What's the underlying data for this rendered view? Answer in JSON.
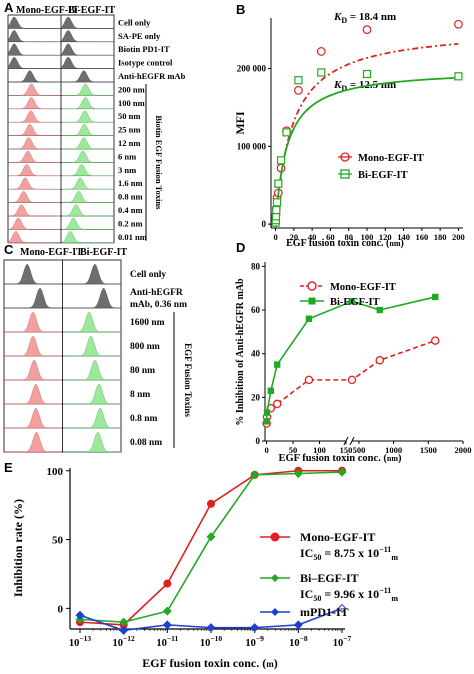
{
  "colors": {
    "red": "#e02020",
    "green": "#22a822",
    "blue": "#1f3fd0",
    "gray": "#6e6e6e",
    "red_fill": "#f2a0a0",
    "green_fill": "#9ee89e"
  },
  "chart_data": [
    {
      "panel": "A",
      "type": "histogram-overlay",
      "columns": [
        "Mono-EGF-IT",
        "Bi-EGF-IT"
      ],
      "rows": [
        "Cell only",
        "SA-PE only",
        "Biotin PD1-IT",
        "Isotype control",
        "Anti-hEGFR mAb",
        "200 nM",
        "100 nM",
        "50 nM",
        "25 nM",
        "12 nM",
        "6 nM",
        "3 nM",
        "1.6 nM",
        "0.8 nM",
        "0.4 nM",
        "0.2 nM",
        "0.01 nM"
      ],
      "row_labels": [
        "Cell only",
        "SA-PE only",
        "Biotin PD1-IT",
        "Isotype control",
        "Anti-hEGFR mAb",
        "200 nm",
        "100 nm",
        "50 nm",
        "25 nm",
        "12 nm",
        "6 nm",
        "3 nm",
        "1.6 nm",
        "0.8 nm",
        "0.4 nm",
        "0.2 nm",
        "0.01 nm"
      ],
      "bracket_label": "Biotin EGF Fusion Toxins",
      "peak_mono": [
        0.12,
        0.12,
        0.12,
        0.12,
        0.42,
        0.45,
        0.45,
        0.44,
        0.42,
        0.4,
        0.38,
        0.36,
        0.33,
        0.3,
        0.26,
        0.2,
        0.15
      ],
      "peak_bi": [
        0.12,
        0.12,
        0.12,
        0.12,
        0.42,
        0.45,
        0.45,
        0.44,
        0.43,
        0.42,
        0.4,
        0.38,
        0.35,
        0.32,
        0.27,
        0.22,
        0.16
      ]
    },
    {
      "panel": "B",
      "type": "scatter",
      "xlabel": "EGF fusion toxin conc. (nM)",
      "xlabel_parts": [
        "EGF fusion toxin conc. (",
        "nm",
        ")"
      ],
      "ylabel": "MFI",
      "xlim": [
        -5,
        205
      ],
      "ylim": [
        -5000,
        265000
      ],
      "xticks": [
        0,
        20,
        40,
        60,
        80,
        100,
        120,
        140,
        160,
        180,
        200
      ],
      "yticks": [
        0,
        100000,
        200000
      ],
      "ytick_labels": [
        "0",
        "100 000",
        "200 000"
      ],
      "annotations": [
        {
          "main": "K",
          "sub": "D",
          "rest": " = 18.4 nm",
          "series": "Mono-EGF-IT"
        },
        {
          "main": "K",
          "sub": "D",
          "rest": " = 12.5 nm",
          "series": "Bi-EGF-IT"
        }
      ],
      "series": [
        {
          "name": "Mono-EGF-IT",
          "marker": "open-circle",
          "fit": "dash-dot",
          "bmax": 253000,
          "kd": 18.4,
          "x": [
            0.01,
            0.2,
            0.4,
            0.8,
            1.6,
            3,
            6,
            12,
            25,
            50,
            100,
            200
          ],
          "y": [
            2000,
            6000,
            11000,
            20000,
            34000,
            40000,
            72000,
            120000,
            172000,
            222000,
            250000,
            257000
          ]
        },
        {
          "name": "Bi-EGF-IT",
          "marker": "open-square",
          "fit": "solid",
          "bmax": 200000,
          "kd": 12.5,
          "x": [
            0.01,
            0.2,
            0.4,
            0.8,
            1.6,
            3,
            6,
            12,
            25,
            50,
            100,
            200
          ],
          "y": [
            2000,
            5000,
            10000,
            18000,
            28000,
            52000,
            82000,
            118000,
            185000,
            195000,
            193000,
            190000
          ]
        }
      ]
    },
    {
      "panel": "C",
      "type": "histogram-overlay",
      "columns": [
        "Mono-EGF-IT",
        "Bi-EGF-IT"
      ],
      "rows": [
        "Cell only",
        "Anti-hEGFR mAb, 0.36 nM",
        "1600 nM",
        "800 nM",
        "80 nM",
        "8 nM",
        "0.8 nM",
        "0.08 nM"
      ],
      "row_labels": [
        "Cell only",
        "Anti-hEGFR",
        "mAb, 0.36 nm",
        "1600 nm",
        "800 nm",
        "80 nm",
        "8 nm",
        "0.8 nm",
        "0.08 nm"
      ],
      "bracket_label": "EGF Fusion Toxins",
      "peak_mono": [
        0.4,
        0.62,
        0.5,
        0.5,
        0.52,
        0.55,
        0.55,
        0.56
      ],
      "peak_bi": [
        0.55,
        0.7,
        0.45,
        0.48,
        0.55,
        0.62,
        0.64,
        0.6
      ]
    },
    {
      "panel": "D",
      "type": "line",
      "xlabel": "EGF fusion toxin conc. (nM)",
      "xlabel_parts": [
        "EGF fusion toxin conc. (",
        "nm",
        ")"
      ],
      "ylabel": "% Inhibition of Anti-hEGFR mAb",
      "ylim": [
        0,
        82
      ],
      "yticks": [
        0,
        20,
        40,
        60,
        80
      ],
      "xticks": [
        0,
        50,
        100,
        150,
        500,
        1000,
        1500,
        2000
      ],
      "x_axis_break": [
        150,
        400
      ],
      "series": [
        {
          "name": "Mono-EGF-IT",
          "marker": "open-circle",
          "dash": true,
          "x": [
            0.08,
            0.8,
            8,
            20,
            80,
            400,
            800,
            1600
          ],
          "y": [
            8,
            11,
            15,
            17,
            28,
            28,
            37,
            46
          ]
        },
        {
          "name": "Bi-EGF-IT",
          "marker": "filled-square",
          "dash": false,
          "x": [
            0.08,
            0.8,
            8,
            20,
            80,
            400,
            800,
            1600
          ],
          "y": [
            9,
            13,
            23,
            35,
            56,
            64,
            60,
            66
          ]
        }
      ]
    },
    {
      "panel": "E",
      "type": "line",
      "xlabel": "EGF fusion toxin conc. (M)",
      "xlabel_parts": [
        "EGF fusion toxin conc. (",
        "m",
        ")"
      ],
      "ylabel": "Inhibition rate (%)",
      "x_scale": "log",
      "xlim": [
        1e-13,
        1e-07
      ],
      "ylim": [
        -15,
        102
      ],
      "yticks": [
        0,
        50,
        100
      ],
      "xtick_exponents": [
        -13,
        -12,
        -11,
        -10,
        -9,
        -8,
        -7
      ],
      "series": [
        {
          "name": "Mono-EGF-IT",
          "ic50": "IC 50 = 8.75 x 10-11 M",
          "marker": "filled-circle",
          "x": [
            1e-13,
            1e-12,
            1e-11,
            1e-10,
            1e-09,
            1e-08,
            1e-07
          ],
          "y": [
            -10,
            -12,
            18,
            76,
            97,
            100,
            100
          ]
        },
        {
          "name": "Bi-EGF-IT",
          "ic50": "IC 50 = 9.96 x 10-11 M",
          "marker": "filled-diamond",
          "x": [
            1e-13,
            1e-12,
            1e-11,
            1e-10,
            1e-09,
            1e-08,
            1e-07
          ],
          "y": [
            -8,
            -10,
            -2,
            52,
            97,
            98,
            99
          ]
        },
        {
          "name": "mPD1-IT",
          "marker": "filled-diamond",
          "x": [
            1e-13,
            1e-12,
            1e-11,
            1e-10,
            1e-09,
            1e-08,
            1e-07
          ],
          "y": [
            -5,
            -16,
            -12,
            -14,
            -14,
            -12,
            0
          ]
        }
      ],
      "legend": [
        {
          "name": "Mono-EGF-IT",
          "ic_prefix": "IC",
          "ic_sub": "50",
          "ic_mid": " = 8.75 x 10",
          "ic_sup": "−11",
          "ic_unit": "m"
        },
        {
          "name": "Bi–EGF-IT",
          "ic_prefix": "IC",
          "ic_sub": "50",
          "ic_mid": " = 9.96 x 10",
          "ic_sup": "−11",
          "ic_unit": "m"
        },
        {
          "name": "mPD1-IT"
        }
      ]
    }
  ],
  "panel_letters": [
    "A",
    "B",
    "C",
    "D",
    "E"
  ]
}
